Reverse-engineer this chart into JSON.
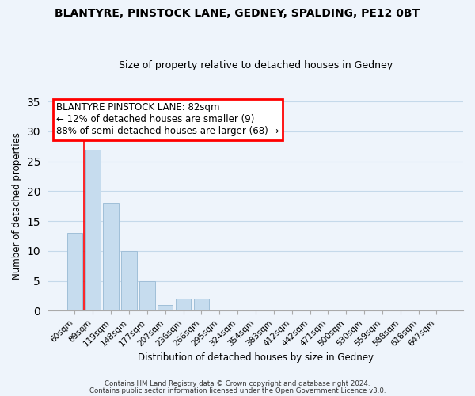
{
  "title": "BLANTYRE, PINSTOCK LANE, GEDNEY, SPALDING, PE12 0BT",
  "subtitle": "Size of property relative to detached houses in Gedney",
  "xlabel": "Distribution of detached houses by size in Gedney",
  "ylabel": "Number of detached properties",
  "bar_color": "#c6dcee",
  "bar_edge_color": "#a0bfd8",
  "categories": [
    "60sqm",
    "89sqm",
    "119sqm",
    "148sqm",
    "177sqm",
    "207sqm",
    "236sqm",
    "266sqm",
    "295sqm",
    "324sqm",
    "354sqm",
    "383sqm",
    "412sqm",
    "442sqm",
    "471sqm",
    "500sqm",
    "530sqm",
    "559sqm",
    "588sqm",
    "618sqm",
    "647sqm"
  ],
  "values": [
    13,
    27,
    18,
    10,
    5,
    1,
    2,
    2,
    0,
    0,
    0,
    0,
    0,
    0,
    0,
    0,
    0,
    0,
    0,
    0,
    0
  ],
  "ylim": [
    0,
    35
  ],
  "yticks": [
    0,
    5,
    10,
    15,
    20,
    25,
    30,
    35
  ],
  "redline_x": 0.5,
  "annotation": {
    "label": "BLANTYRE PINSTOCK LANE: 82sqm",
    "line1": "← 12% of detached houses are smaller (9)",
    "line2": "88% of semi-detached houses are larger (68) →",
    "box_color": "white",
    "border_color": "red"
  },
  "footer_line1": "Contains HM Land Registry data © Crown copyright and database right 2024.",
  "footer_line2": "Contains public sector information licensed under the Open Government Licence v3.0.",
  "background_color": "#eef4fb",
  "grid_color": "#c5d9ea"
}
